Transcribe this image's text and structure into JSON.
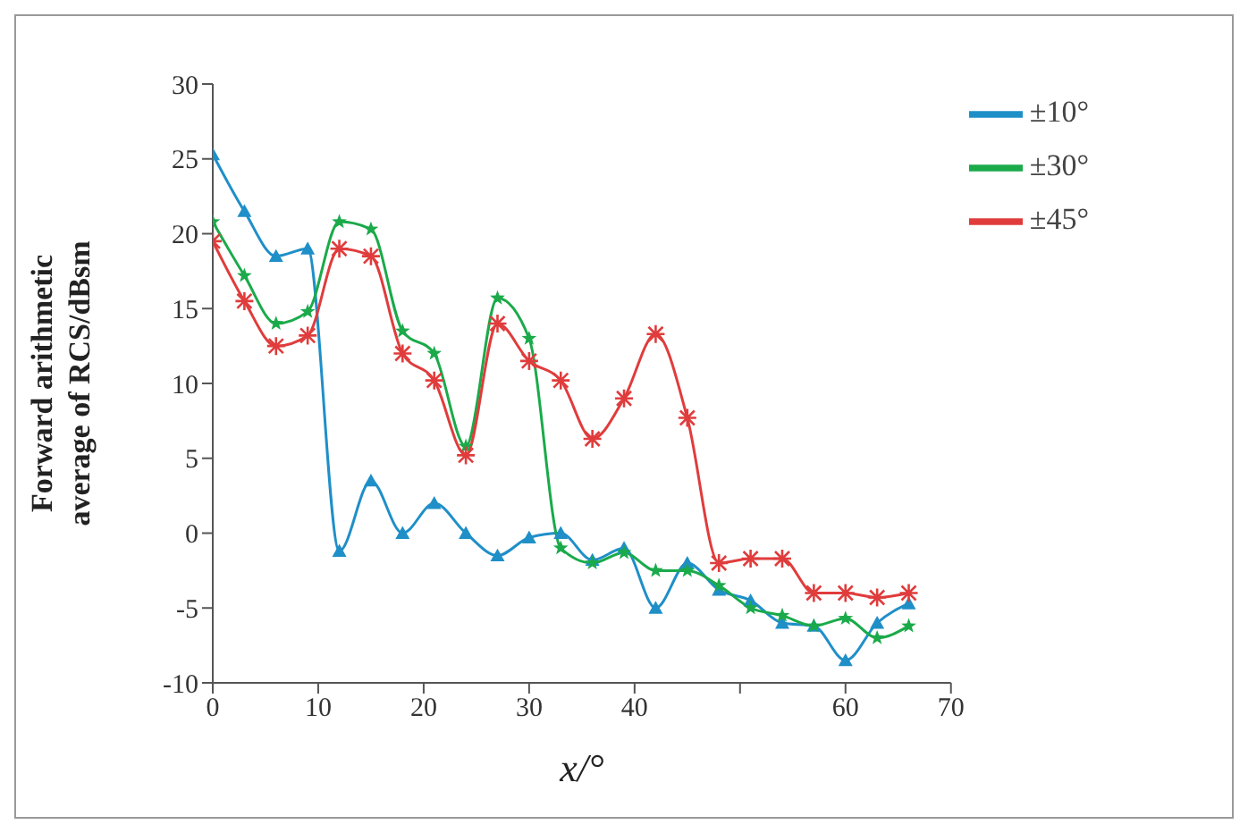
{
  "chart_data": {
    "type": "line",
    "xlabel": "x/°",
    "ylabel": "Forward arithmetic average of RCS/dBsm",
    "x": [
      0,
      3,
      6,
      9,
      12,
      15,
      18,
      21,
      24,
      27,
      30,
      33,
      36,
      39,
      42,
      45,
      48,
      51,
      54,
      57,
      60,
      63,
      66
    ],
    "series": [
      {
        "name": "±10°",
        "color": "#1f8fc8",
        "marker": "triangle",
        "values": [
          25.3,
          21.5,
          18.5,
          19,
          -1.2,
          3.5,
          0,
          2,
          0,
          -1.5,
          -0.3,
          0,
          -1.8,
          -1,
          -5,
          -2,
          -3.8,
          -4.5,
          -6,
          -6.2,
          -8.5,
          -6,
          -4.7
        ]
      },
      {
        "name": "±30°",
        "color": "#1aaa4a",
        "marker": "star",
        "values": [
          20.8,
          17.2,
          14,
          14.8,
          20.8,
          20.3,
          13.5,
          12,
          5.8,
          15.7,
          13,
          -1,
          -2,
          -1.3,
          -2.5,
          -2.5,
          -3.5,
          -5,
          -5.5,
          -6.2,
          -5.7,
          -7,
          -6.2
        ]
      },
      {
        "name": "±45°",
        "color": "#e03c3c",
        "marker": "cross",
        "values": [
          19.5,
          15.5,
          12.5,
          13.2,
          19,
          18.5,
          12,
          10.2,
          5.2,
          14,
          11.5,
          10.2,
          6.3,
          9,
          13.3,
          7.7,
          -2,
          -1.7,
          -1.7,
          -4,
          -4,
          -4.3,
          -4
        ]
      }
    ],
    "xlim": [
      0,
      70
    ],
    "xticks": [
      0,
      10,
      20,
      30,
      40,
      {
        "value": 50,
        "label": null
      },
      60,
      70
    ],
    "ylim": [
      -10,
      30
    ],
    "yticks": [
      -10,
      -5,
      0,
      5,
      10,
      15,
      20,
      25,
      30
    ],
    "grid": false,
    "legend": "top right",
    "line_style": "solid"
  }
}
